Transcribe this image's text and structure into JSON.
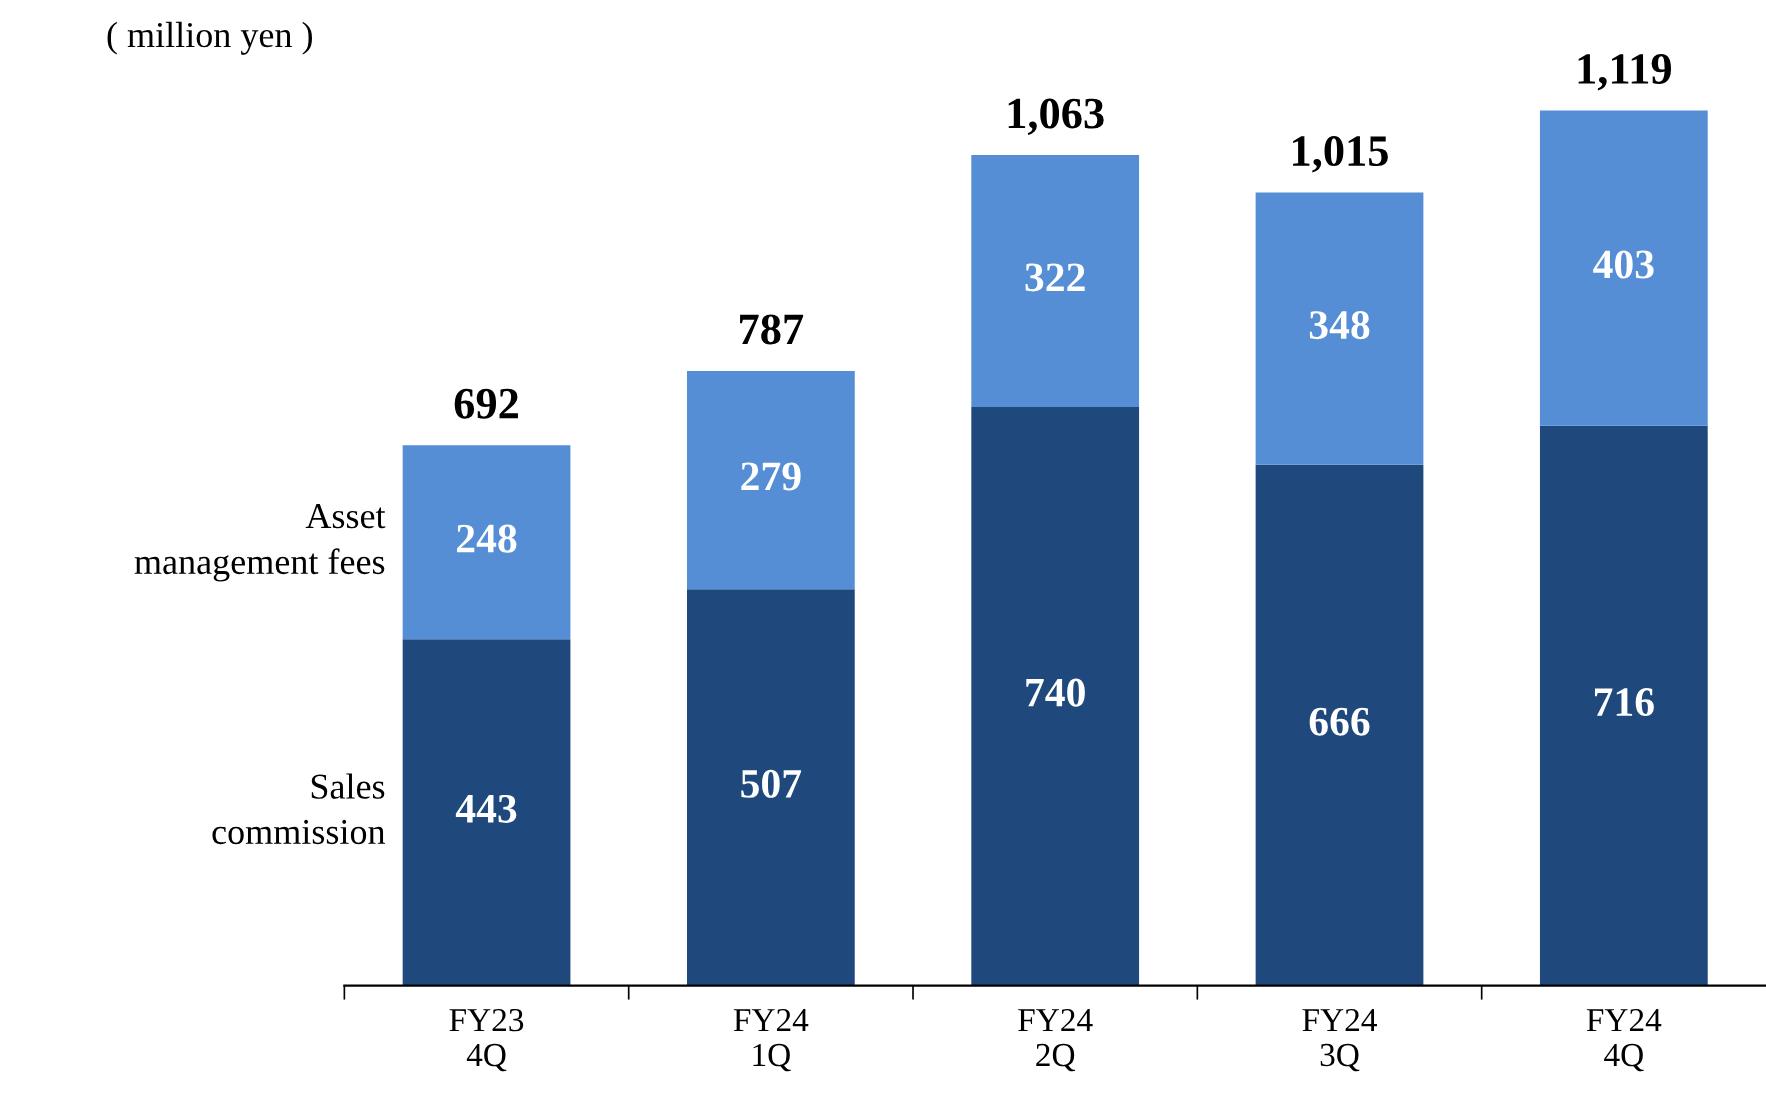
{
  "chart_data": {
    "type": "bar",
    "stacked": true,
    "categories": [
      "FY23\n4Q",
      "FY24\n1Q",
      "FY24\n2Q",
      "FY24\n3Q",
      "FY24\n4Q"
    ],
    "series": [
      {
        "name": "Sales\ncommission",
        "color": "#1f487c",
        "values": [
          443,
          507,
          740,
          666,
          716
        ]
      },
      {
        "name": "Asset\nmanagement fees",
        "color": "#558ed5",
        "values": [
          248,
          279,
          322,
          348,
          403
        ]
      }
    ],
    "totals": [
      "692",
      "787",
      "1,063",
      "1,015",
      "1,119"
    ],
    "data_labels": true,
    "legend": false,
    "grid": false,
    "annotations": [
      "( million yen )"
    ]
  }
}
